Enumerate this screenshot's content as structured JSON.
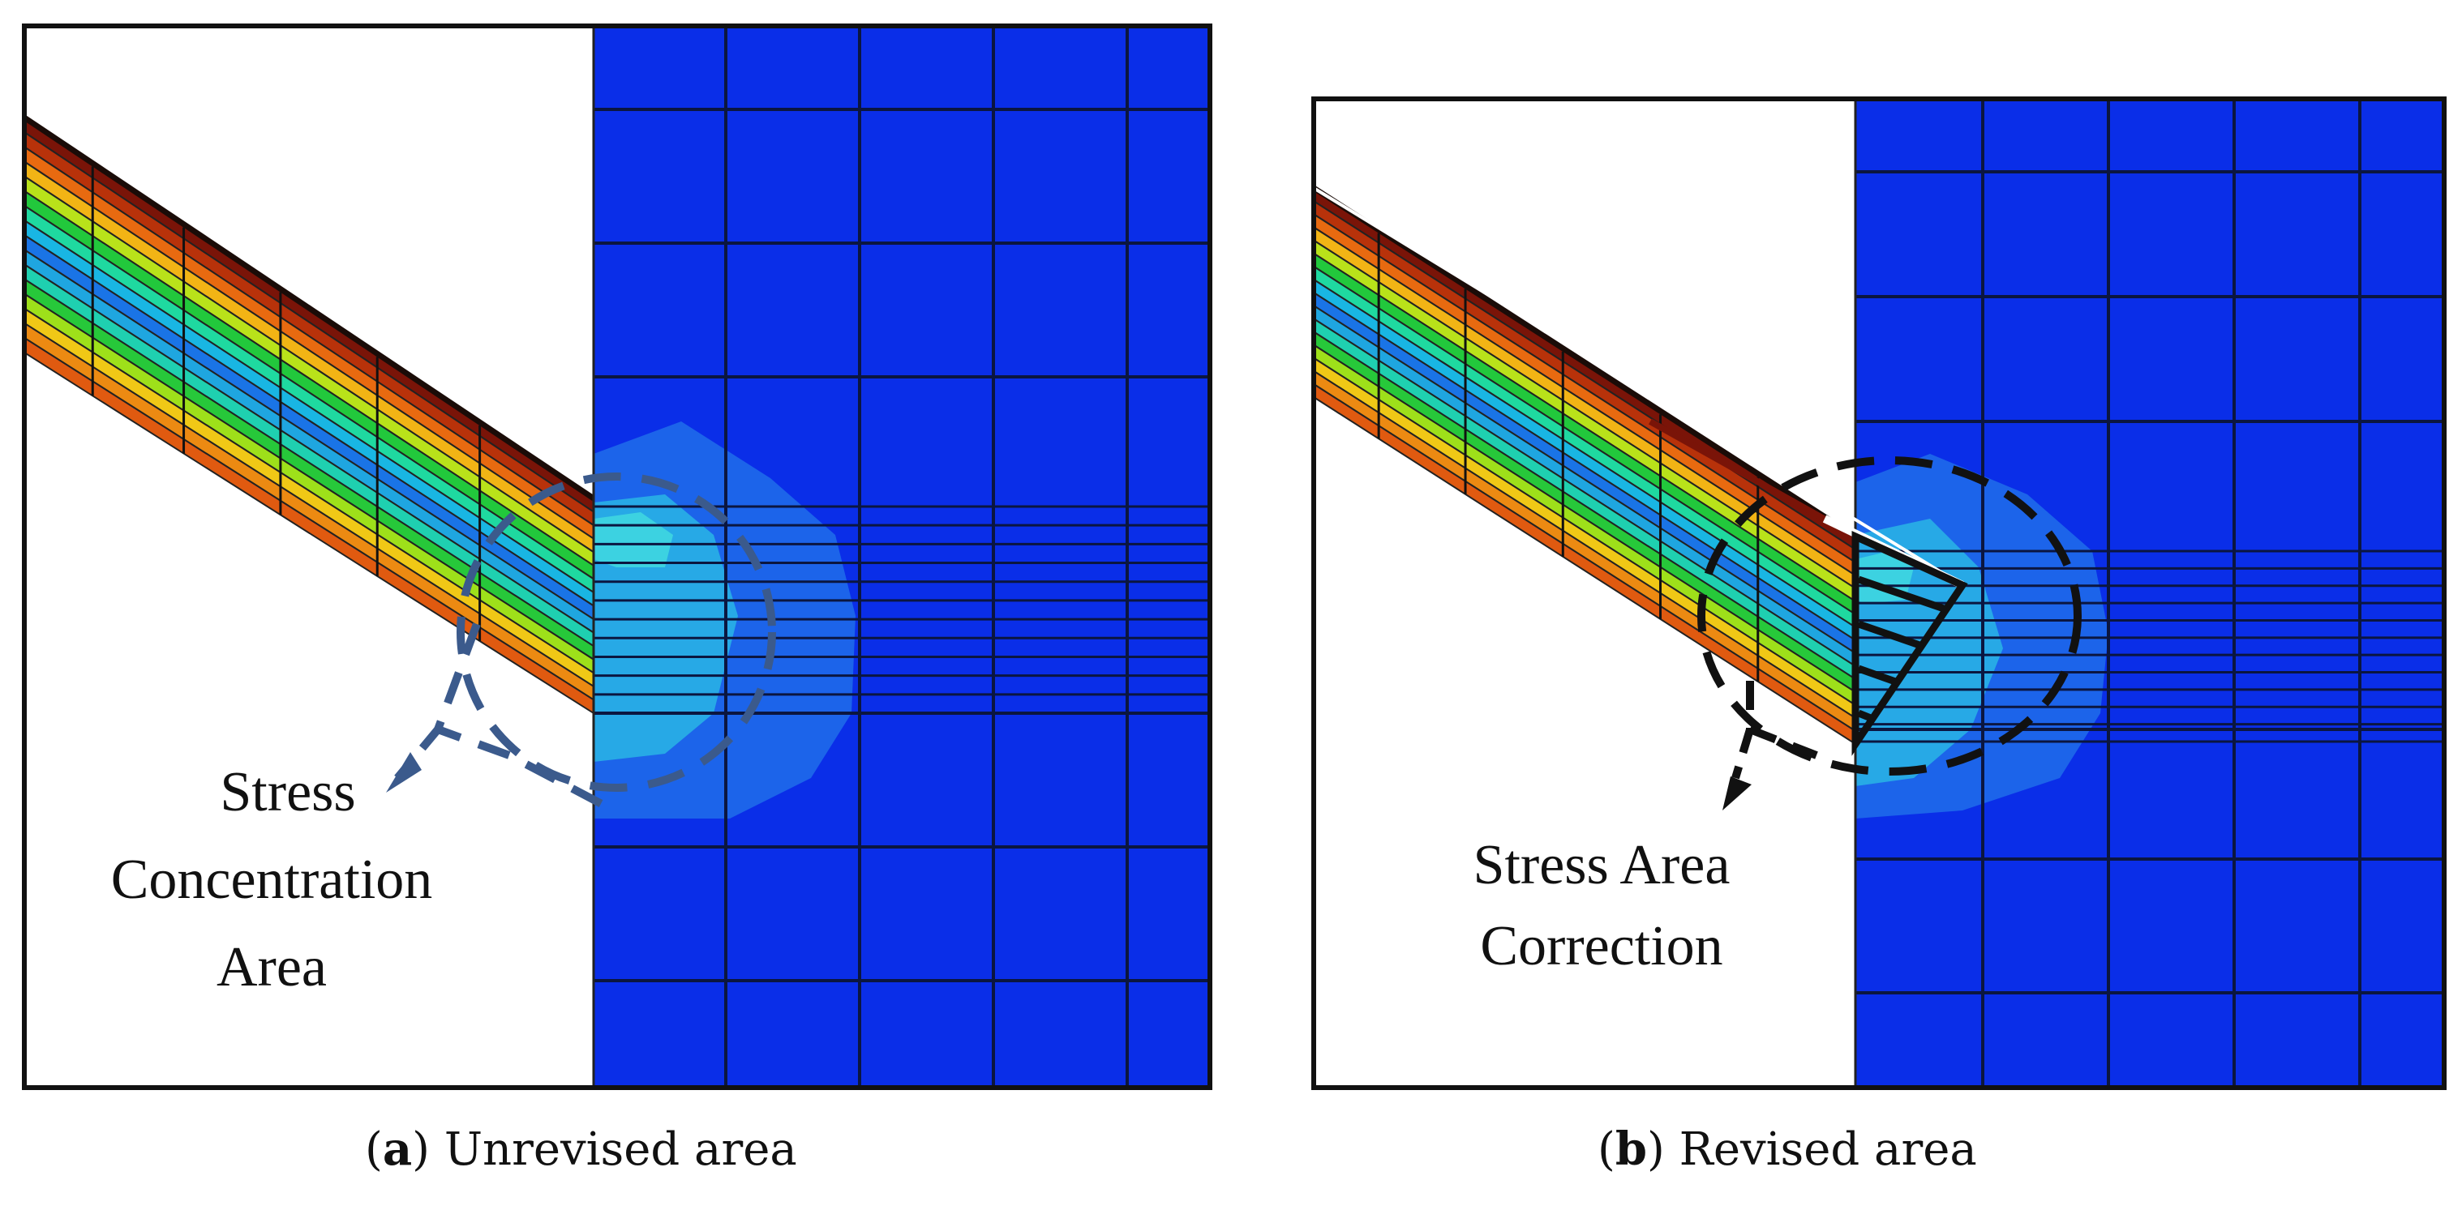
{
  "figure": {
    "panel_a": {
      "annotation_lines": [
        "Stress",
        "Concentration",
        "Area"
      ],
      "caption_letter": "a",
      "caption_text": "Unrevised area",
      "callout_color": "#3b5a8c"
    },
    "panel_b": {
      "annotation_lines": [
        "Stress Area",
        "Correction"
      ],
      "caption_letter": "b",
      "caption_text": "Revised area",
      "callout_color": "#111111"
    },
    "colors": {
      "solid_blue": "#0a2ee8",
      "light_blue": "#1c64ea",
      "cyan": "#27a9e6",
      "pale_cyan": "#3fd6e0",
      "mesh_line": "#0b1640",
      "band_palette": [
        "#7a1408",
        "#b8320a",
        "#e86a10",
        "#f2b415",
        "#b9e21a",
        "#22c83c",
        "#1fd9a0",
        "#19b6e3",
        "#1a74e6",
        "#1fa6e0",
        "#1fd0b0",
        "#27c83a",
        "#9ee01a",
        "#f0c816",
        "#ec8a12",
        "#e05a10"
      ]
    }
  }
}
